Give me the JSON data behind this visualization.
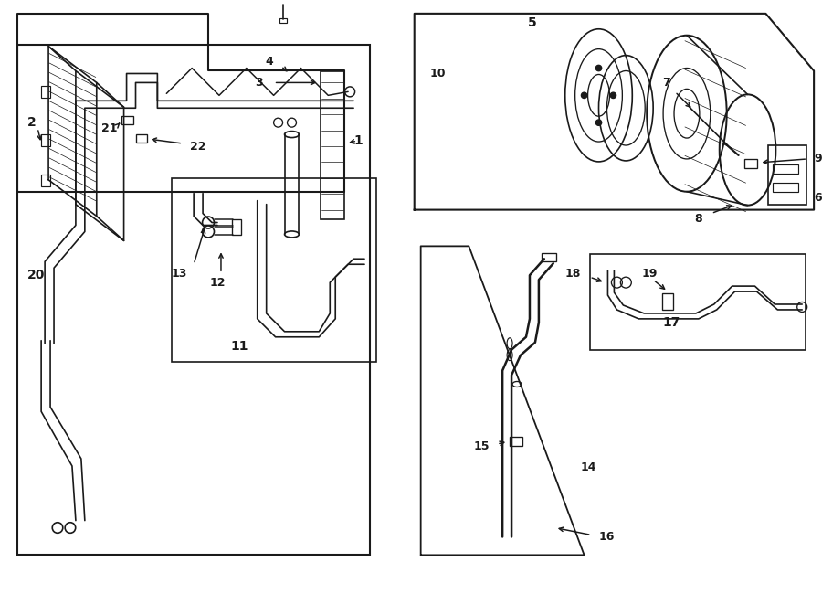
{
  "bg_color": "#ffffff",
  "line_color": "#1a1a1a",
  "line_width": 1.2,
  "fig_width": 9.0,
  "fig_height": 6.61
}
